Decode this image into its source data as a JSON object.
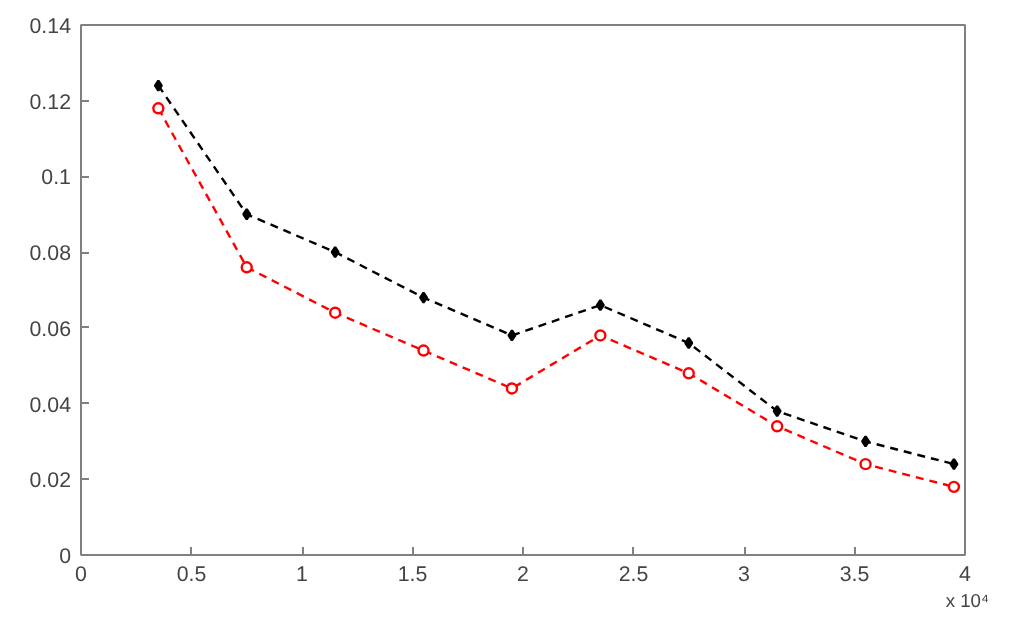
{
  "chart_data": {
    "type": "line",
    "x": [
      0.35,
      0.75,
      1.15,
      1.55,
      1.95,
      2.35,
      2.75,
      3.15,
      3.55,
      3.95
    ],
    "series": [
      {
        "color": "#000000",
        "marker": "diamond",
        "values": [
          0.124,
          0.09,
          0.08,
          0.068,
          0.058,
          0.066,
          0.056,
          0.038,
          0.03,
          0.024
        ]
      },
      {
        "color": "#ff0000",
        "marker": "circle",
        "values": [
          0.118,
          0.076,
          0.064,
          0.054,
          0.044,
          0.058,
          0.048,
          0.034,
          0.024,
          0.018
        ]
      }
    ],
    "xlim": [
      0,
      4
    ],
    "xticks": [
      0,
      0.5,
      1,
      1.5,
      2,
      2.5,
      3,
      3.5,
      4
    ],
    "ylim": [
      0,
      0.14
    ],
    "yticks": [
      0,
      0.02,
      0.04,
      0.06,
      0.08,
      0.1,
      0.12,
      0.14
    ],
    "line_style": "dashed",
    "grid": false,
    "annotations": [
      "x 10⁴"
    ]
  }
}
